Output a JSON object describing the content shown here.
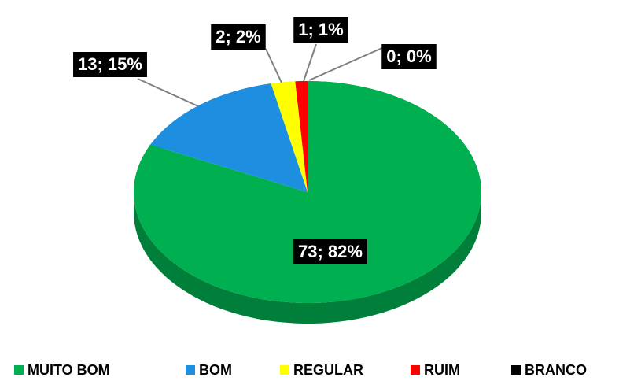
{
  "chart_data": {
    "type": "pie",
    "categories": [
      "MUITO BOM",
      "BOM",
      "REGULAR",
      "RUIM",
      "BRANCO"
    ],
    "values": [
      73,
      13,
      2,
      1,
      0
    ],
    "value_labels": [
      "73; 82%",
      "13; 15%",
      "2; 2%",
      "1; 1%",
      "0; 0%"
    ],
    "colors": [
      "#00b050",
      "#1e8fe0",
      "#ffff00",
      "#ff0000",
      "#000000"
    ],
    "legend": "bottom"
  }
}
